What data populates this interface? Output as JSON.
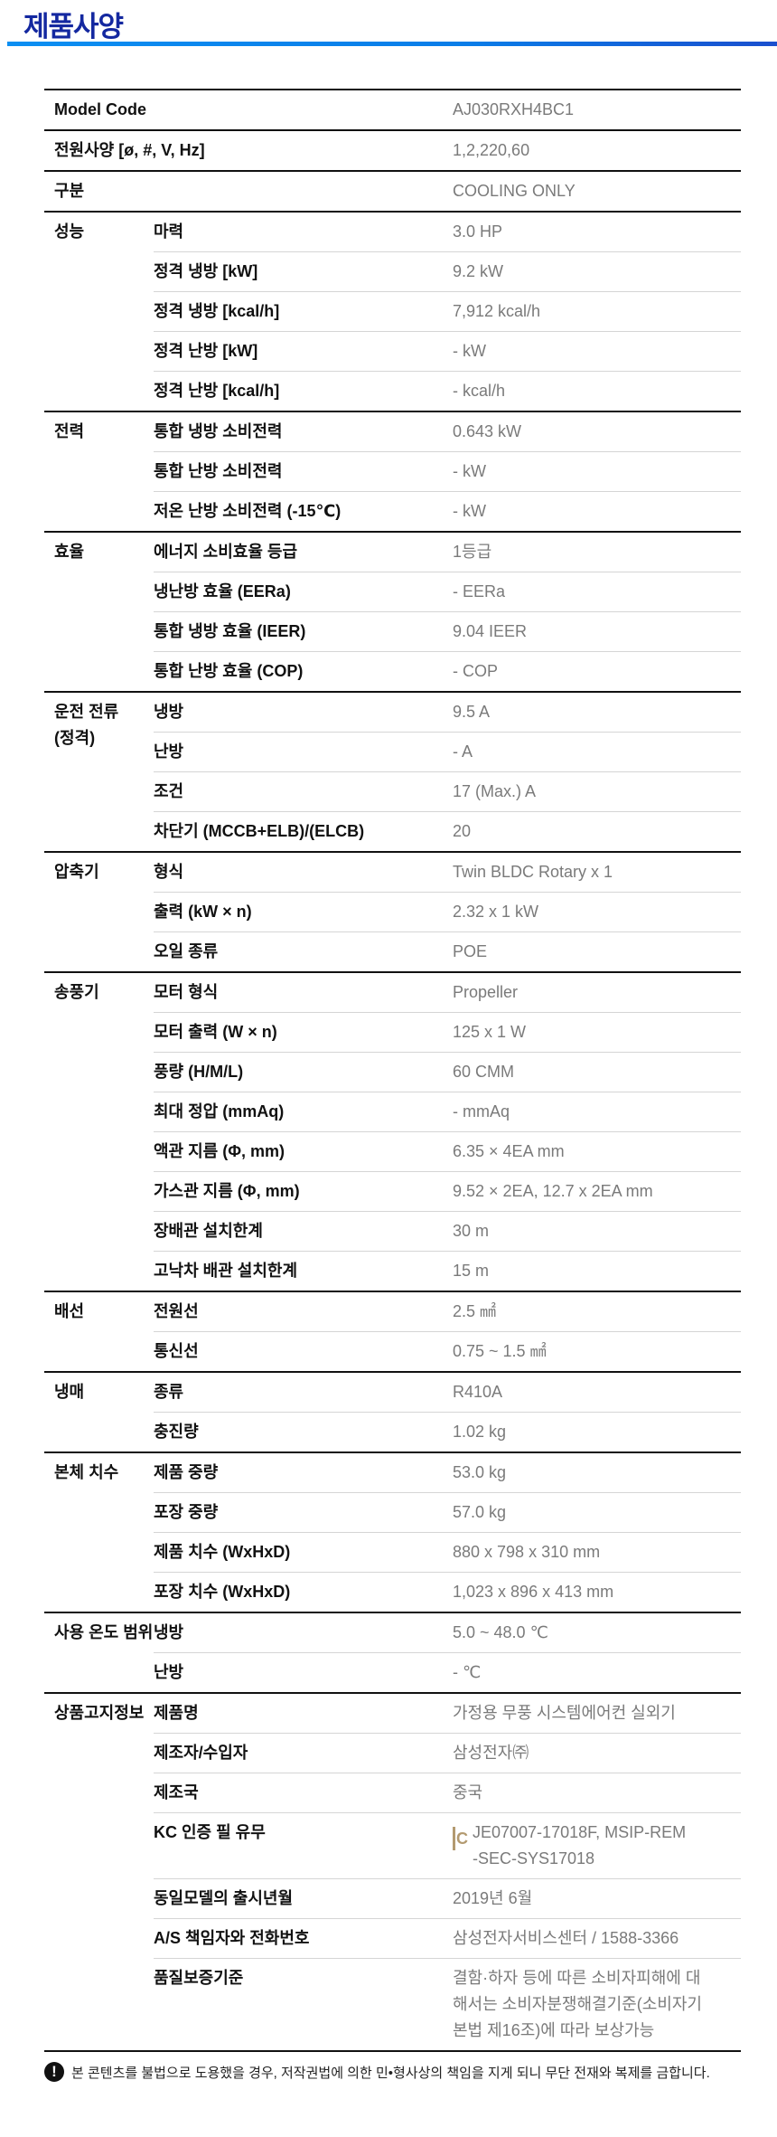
{
  "title": "제품사양",
  "colors": {
    "title": "#1428a0",
    "bar_start": "#0c8ff2",
    "bar_end": "#1a4fce",
    "value_text": "#7a7a7a",
    "kc_mark": "#b39a70"
  },
  "spec_table": {
    "top_rows": [
      {
        "label": "Model Code",
        "value": "AJ030RXH4BC1"
      },
      {
        "label": "전원사양 [ø, #, V, Hz]",
        "value": "1,2,220,60"
      },
      {
        "label": "구분",
        "value": "COOLING ONLY"
      }
    ],
    "groups": [
      {
        "label": "성능",
        "rows": [
          {
            "label": "마력",
            "value": "3.0 HP"
          },
          {
            "label": "정격 냉방 [kW]",
            "value": "9.2 kW"
          },
          {
            "label": "정격 냉방 [kcal/h]",
            "value": "7,912 kcal/h"
          },
          {
            "label": "정격 난방 [kW]",
            "value": "- kW"
          },
          {
            "label": "정격 난방 [kcal/h]",
            "value": "- kcal/h"
          }
        ]
      },
      {
        "label": "전력",
        "rows": [
          {
            "label": "통합 냉방 소비전력",
            "value": "0.643 kW"
          },
          {
            "label": "통합 난방 소비전력",
            "value": "- kW"
          },
          {
            "label": "저온 난방 소비전력 (-15℃)",
            "value": "- kW"
          }
        ]
      },
      {
        "label": "효율",
        "rows": [
          {
            "label": "에너지 소비효율 등급",
            "value": "1등급"
          },
          {
            "label": "냉난방 효율 (EERa)",
            "value": "- EERa"
          },
          {
            "label": "통합 냉방 효율 (IEER)",
            "value": "9.04 IEER"
          },
          {
            "label": "통합 난방 효율 (COP)",
            "value": "- COP"
          }
        ]
      },
      {
        "label": "운전 전류\n(정격)",
        "rows": [
          {
            "label": "냉방",
            "value": "9.5 A"
          },
          {
            "label": "난방",
            "value": "- A"
          },
          {
            "label": "조건",
            "value": "17 (Max.) A"
          },
          {
            "label": "차단기 (MCCB+ELB)/(ELCB)",
            "value": "20"
          }
        ]
      },
      {
        "label": "압축기",
        "rows": [
          {
            "label": "형식",
            "value": "Twin BLDC Rotary x 1"
          },
          {
            "label": "출력 (kW × n)",
            "value": "2.32 x 1 kW"
          },
          {
            "label": "오일 종류",
            "value": "POE"
          }
        ]
      },
      {
        "label": "송풍기",
        "rows": [
          {
            "label": "모터 형식",
            "value": "Propeller"
          },
          {
            "label": "모터 출력 (W × n)",
            "value": "125 x 1 W"
          },
          {
            "label": "풍량 (H/M/L)",
            "value": "60 CMM"
          },
          {
            "label": "최대 정압 (mmAq)",
            "value": "- mmAq"
          },
          {
            "label": "액관 지름 (Φ, mm)",
            "value": "6.35 × 4EA mm"
          },
          {
            "label": "가스관 지름 (Φ, mm)",
            "value": "9.52 × 2EA, 12.7 x 2EA mm"
          },
          {
            "label": "장배관 설치한계",
            "value": "30 m"
          },
          {
            "label": "고낙차 배관 설치한계",
            "value": "15 m"
          }
        ]
      },
      {
        "label": "배선",
        "rows": [
          {
            "label": "전원선",
            "value": "2.5 ㎟"
          },
          {
            "label": "통신선",
            "value": "0.75 ~ 1.5 ㎟"
          }
        ]
      },
      {
        "label": "냉매",
        "rows": [
          {
            "label": "종류",
            "value": "R410A"
          },
          {
            "label": "충진량",
            "value": "1.02 kg"
          }
        ]
      },
      {
        "label": "본체 치수",
        "rows": [
          {
            "label": "제품 중량",
            "value": "53.0 kg"
          },
          {
            "label": "포장 중량",
            "value": "57.0 kg"
          },
          {
            "label": "제품 치수 (WxHxD)",
            "value": "880 x 798 x 310 mm"
          },
          {
            "label": "포장 치수 (WxHxD)",
            "value": "1,023 x 896 x 413 mm"
          }
        ]
      },
      {
        "label": "사용 온도 범위",
        "rows": [
          {
            "label": "냉방",
            "value": "5.0 ~ 48.0 ℃"
          },
          {
            "label": "난방",
            "value": "- ℃"
          }
        ]
      },
      {
        "label": "상품고지정보",
        "rows": [
          {
            "label": "제품명",
            "value": "가정용 무풍 시스템에어컨 실외기"
          },
          {
            "label": "제조자/수입자",
            "value": "삼성전자㈜"
          },
          {
            "label": "제조국",
            "value": "중국"
          },
          {
            "label": "KC 인증 필 유무",
            "value": "JE07007-17018F, MSIP-REM\n-SEC-SYS17018",
            "icon": "kc-mark-icon"
          },
          {
            "label": "동일모델의 출시년월",
            "value": "2019년 6월"
          },
          {
            "label": "A/S 책임자와 전화번호",
            "value": "삼성전자서비스센터 / 1588-3366"
          },
          {
            "label": "품질보증기준",
            "value": "결함·하자 등에 따른 소비자피해에 대\n해서는 소비자분쟁해결기준(소비자기\n본법 제16조)에 따라 보상가능"
          }
        ]
      }
    ]
  },
  "footer": {
    "icon": "exclamation-icon",
    "notice": "본 콘텐츠를 불법으로 도용했을 경우, 저작권법에 의한 민•형사상의 책임을 지게 되니 무단 전재와 복제를 금합니다."
  }
}
